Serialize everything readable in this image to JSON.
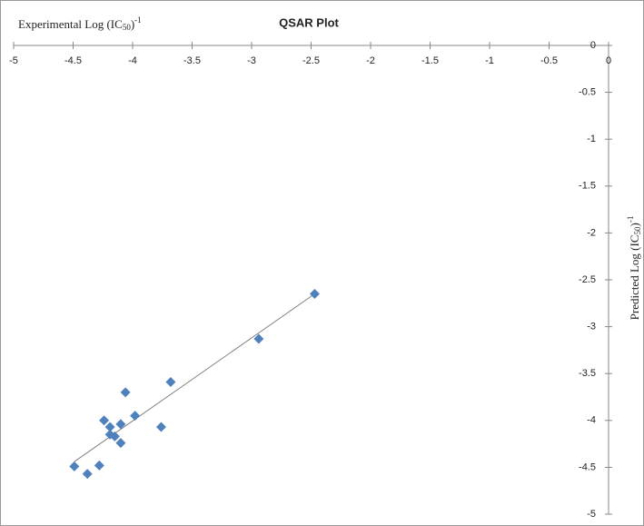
{
  "chart_data": {
    "type": "scatter",
    "title": "QSAR Plot",
    "x_label": [
      "Experimental Log (IC",
      "50",
      ")",
      "-1"
    ],
    "y_label": [
      "Predicted  Log (IC",
      "50",
      ")",
      "-1"
    ],
    "x": [
      -4.49,
      -4.38,
      -4.28,
      -4.24,
      -4.19,
      -4.19,
      -4.15,
      -4.1,
      -4.1,
      -4.06,
      -3.98,
      -3.76,
      -3.68,
      -2.94,
      -2.47
    ],
    "series": [
      {
        "color": "#4f81bd",
        "values": [
          -4.49,
          -4.57,
          -4.48,
          -4.0,
          -4.07,
          -4.15,
          -4.17,
          -4.04,
          -4.24,
          -3.7,
          -3.95,
          -4.07,
          -3.59,
          -3.13,
          -2.65
        ]
      }
    ],
    "trendline": {
      "color": "#808080",
      "x": [
        -4.49,
        -2.47
      ],
      "y": [
        -4.44,
        -2.65
      ]
    },
    "xlim": [
      -5,
      0
    ],
    "ylim": [
      -5,
      0
    ],
    "xticks": [
      -5,
      -4.5,
      -4,
      -3.5,
      -3,
      -2.5,
      -2,
      -1.5,
      -1,
      -0.5,
      0
    ],
    "yticks": [
      0,
      -0.5,
      -1,
      -1.5,
      -2,
      -2.5,
      -3,
      -3.5,
      -4,
      -4.5,
      -5
    ],
    "grid": false
  }
}
